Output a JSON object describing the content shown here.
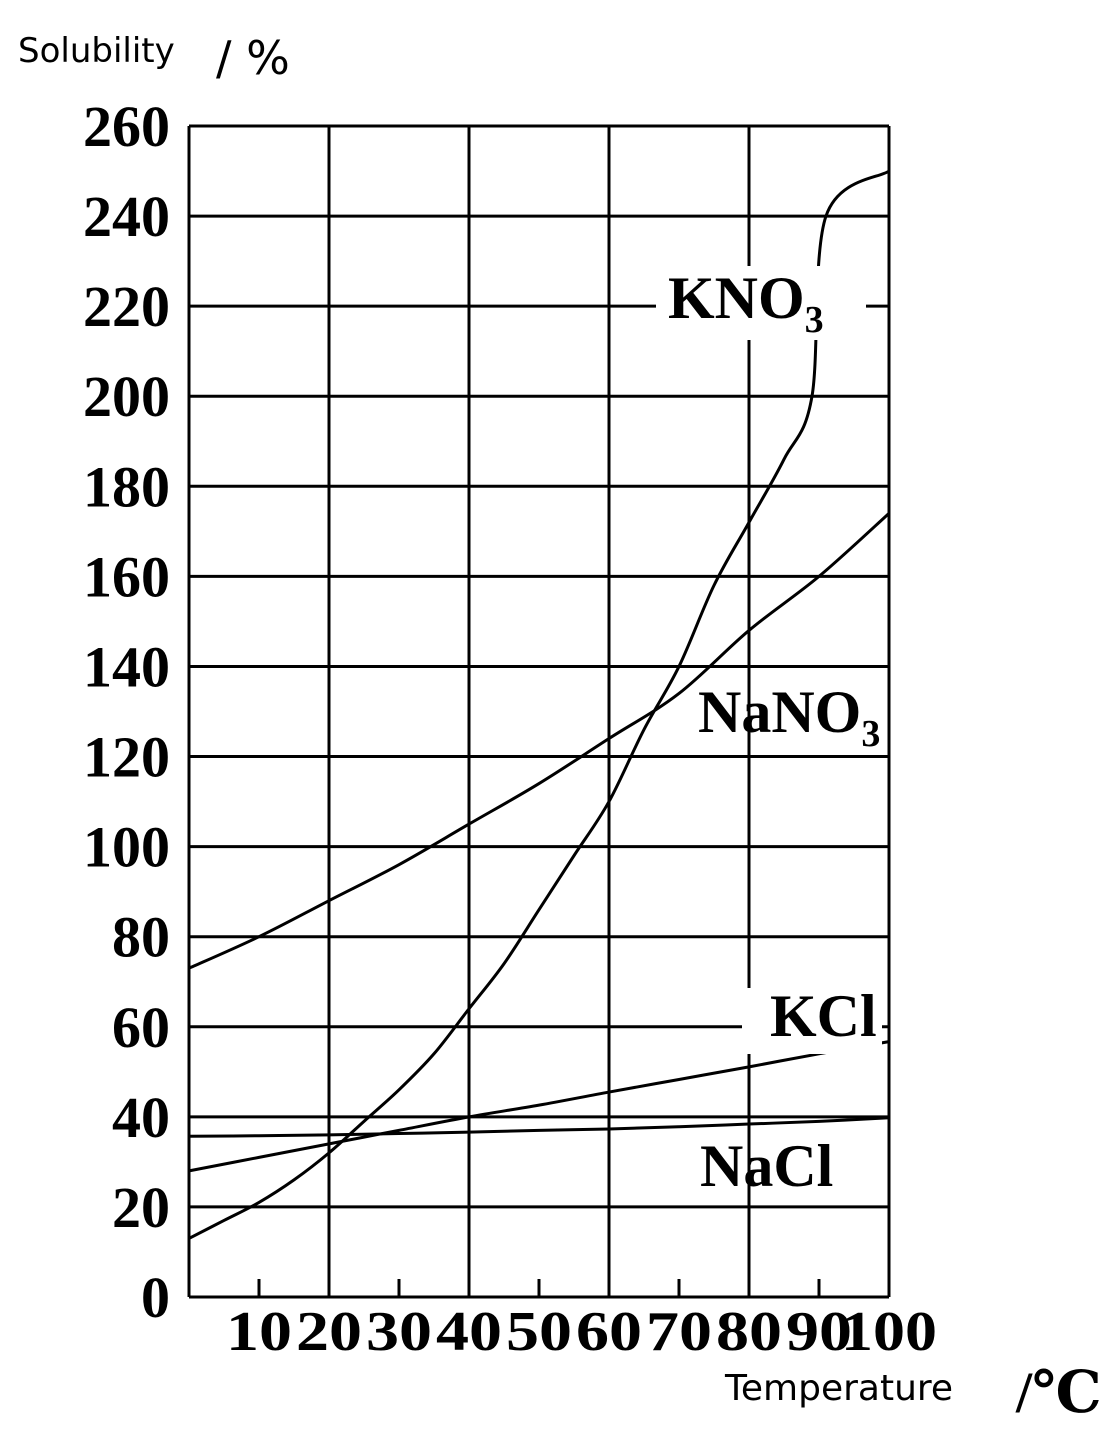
{
  "chart_data": {
    "type": "line",
    "ylabel": "Solubility",
    "ylabel_unit": "/ %",
    "xlabel": "Temperature",
    "xlabel_unit": "/℃",
    "xlim": [
      0,
      100
    ],
    "ylim": [
      0,
      260
    ],
    "x_ticks": [
      "10",
      "20",
      "30",
      "40",
      "50",
      "60",
      "70",
      "80",
      "90",
      "100"
    ],
    "y_ticks": [
      "0",
      "20",
      "40",
      "60",
      "80",
      "100",
      "120",
      "140",
      "160",
      "180",
      "200",
      "220",
      "240",
      "260"
    ],
    "grid": true,
    "series": [
      {
        "name": "KNO3",
        "label_main": "KNO",
        "label_sub": "3",
        "x": [
          0,
          5,
          10,
          15,
          20,
          25,
          30,
          35,
          40,
          45,
          50,
          55,
          60,
          65,
          70,
          75,
          80,
          85,
          89,
          91,
          100
        ],
        "values": [
          13,
          17,
          21,
          26,
          32,
          39,
          46,
          54,
          64,
          74,
          86,
          98,
          110,
          126,
          140,
          158,
          172,
          186,
          200,
          240,
          250
        ]
      },
      {
        "name": "NaNO3",
        "label_main": "NaNO",
        "label_sub": "3",
        "x": [
          0,
          10,
          20,
          30,
          40,
          50,
          60,
          70,
          80,
          90,
          100
        ],
        "values": [
          73,
          80,
          88,
          96,
          105,
          114,
          124,
          134,
          148,
          160,
          174
        ]
      },
      {
        "name": "KCl",
        "label_main": "KCl",
        "x": [
          0,
          10,
          20,
          30,
          40,
          50,
          60,
          70,
          80,
          90,
          100
        ],
        "values": [
          28,
          31,
          34,
          37,
          40,
          42.6,
          45.5,
          48.3,
          51.1,
          54,
          56.7
        ]
      },
      {
        "name": "NaCl",
        "label_main": "NaCl",
        "x": [
          0,
          10,
          20,
          30,
          40,
          50,
          60,
          70,
          80,
          90,
          100
        ],
        "values": [
          35.7,
          35.8,
          36,
          36.3,
          36.6,
          37,
          37.3,
          37.8,
          38.4,
          39,
          39.8
        ]
      }
    ]
  }
}
